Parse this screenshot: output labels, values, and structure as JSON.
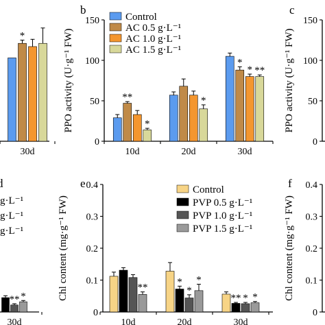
{
  "chart_data": [
    {
      "type": "bar",
      "panel_letter": "",
      "xlabel": "",
      "ylabel": "",
      "categories": [
        "30d"
      ],
      "ylim": [
        0,
        150
      ],
      "yticks": [],
      "series": [
        {
          "name": "",
          "color": "#5b9bef",
          "values": [
            103
          ],
          "errors": [
            0
          ],
          "stars": [
            ""
          ]
        },
        {
          "name": "",
          "color": "#c08a48",
          "values": [
            121
          ],
          "errors": [
            4
          ],
          "stars": [
            "*"
          ]
        },
        {
          "name": "",
          "color": "#f4962f",
          "values": [
            117
          ],
          "errors": [
            9
          ],
          "stars": [
            ""
          ]
        },
        {
          "name": "",
          "color": "#d8d89a",
          "values": [
            121
          ],
          "errors": [
            19
          ],
          "stars": [
            ""
          ]
        }
      ]
    },
    {
      "type": "bar",
      "panel_letter": "b",
      "xlabel": "",
      "ylabel": "PPO activity (U·g⁻¹ FW)",
      "categories": [
        "10d",
        "20d",
        "30d"
      ],
      "ylim": [
        0,
        150
      ],
      "yticks": [
        "0",
        "50",
        "100",
        "150"
      ],
      "series": [
        {
          "name": "Control",
          "color": "#5b9bef",
          "values": [
            29,
            57,
            105
          ],
          "errors": [
            4,
            4,
            4
          ],
          "stars": [
            "",
            "",
            ""
          ]
        },
        {
          "name": "AC 0.5 g·L⁻¹",
          "color": "#c08a48",
          "values": [
            47,
            68,
            88
          ],
          "errors": [
            2,
            9,
            4
          ],
          "stars": [
            "**",
            "",
            "*"
          ]
        },
        {
          "name": "AC 1.0 g·L⁻¹",
          "color": "#f4962f",
          "values": [
            33,
            57,
            80
          ],
          "errors": [
            5,
            5,
            3
          ],
          "stars": [
            "",
            "",
            "*"
          ]
        },
        {
          "name": "AC 1.5 g·L⁻¹",
          "color": "#d8d89a",
          "values": [
            14,
            40,
            80
          ],
          "errors": [
            2,
            5,
            2
          ],
          "stars": [
            "*",
            "*",
            "**"
          ]
        }
      ]
    },
    {
      "type": "bar",
      "panel_letter": "c",
      "xlabel": "",
      "ylabel": "PPO activity (U·g⁻¹ FW)",
      "categories": [],
      "ylim": [
        0,
        150
      ],
      "yticks": [
        "0",
        "50",
        "100",
        "150"
      ],
      "series": []
    },
    {
      "type": "bar",
      "panel_letter": "d",
      "xlabel": "",
      "ylabel": "",
      "categories": [
        "30d"
      ],
      "ylim": [
        0,
        0.4
      ],
      "yticks": [],
      "legend_fragments": [
        "g·L⁻¹",
        "g·L⁻¹",
        "g·L⁻¹"
      ],
      "series": [
        {
          "name": "",
          "color": "#000000",
          "values": [
            0.045
          ],
          "errors": [
            0.006
          ],
          "stars": [
            ""
          ]
        },
        {
          "name": "",
          "color": "#555555",
          "values": [
            0.022
          ],
          "errors": [
            0.004
          ],
          "stars": [
            "**"
          ]
        },
        {
          "name": "",
          "color": "#9a9a9a",
          "values": [
            0.032
          ],
          "errors": [
            0.004
          ],
          "stars": [
            "*"
          ]
        }
      ]
    },
    {
      "type": "bar",
      "panel_letter": "e",
      "xlabel": "",
      "ylabel": "Chl content (mg·g⁻¹ FW)",
      "categories": [
        "10d",
        "20d",
        "30d"
      ],
      "ylim": [
        0,
        0.4
      ],
      "yticks": [
        "0",
        "0.1",
        "0.2",
        "0.3",
        "0.4"
      ],
      "series": [
        {
          "name": "Control",
          "color": "#f7d486",
          "values": [
            0.112,
            0.128,
            0.056
          ],
          "errors": [
            0.013,
            0.027,
            0.007
          ],
          "stars": [
            "",
            "",
            ""
          ]
        },
        {
          "name": "PVP 0.5 g·L⁻¹",
          "color": "#000000",
          "values": [
            0.131,
            0.072,
            0.027
          ],
          "errors": [
            0.008,
            0.009,
            0.003
          ],
          "stars": [
            "",
            "*",
            "**"
          ]
        },
        {
          "name": "PVP 1.0 g·L⁻¹",
          "color": "#555555",
          "values": [
            0.108,
            0.044,
            0.026
          ],
          "errors": [
            0.009,
            0.01,
            0.004
          ],
          "stars": [
            "",
            "*",
            "*"
          ]
        },
        {
          "name": "PVP 1.5 g·L⁻¹",
          "color": "#9a9a9a",
          "values": [
            0.055,
            0.067,
            0.029
          ],
          "errors": [
            0.008,
            0.02,
            0.004
          ],
          "stars": [
            "**",
            "*",
            "*"
          ]
        }
      ]
    },
    {
      "type": "bar",
      "panel_letter": "f",
      "xlabel": "",
      "ylabel": "Chl content (mg·g⁻¹ FW)",
      "categories": [],
      "ylim": [
        0,
        0.4
      ],
      "yticks": [
        "0",
        "0.1",
        "0.2",
        "0.3",
        "0.4"
      ],
      "series": []
    }
  ]
}
